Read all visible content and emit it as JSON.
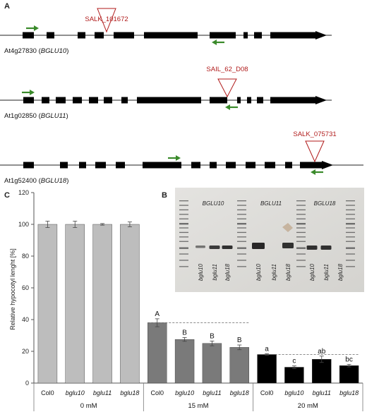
{
  "panel_a": {
    "letter": "A",
    "genes": [
      {
        "name_plain": "At4g27830 (",
        "name_italic": "BGLU10",
        "name_close": ")",
        "insertion": "SALK_101672"
      },
      {
        "name_plain": "At1g02850 (",
        "name_italic": "BGLU11",
        "name_close": ")",
        "insertion": "SAIL_62_D08"
      },
      {
        "name_plain": "At1g52400 (",
        "name_italic": "BGLU18",
        "name_close": ")",
        "insertion": "SALK_075731"
      }
    ],
    "colors": {
      "exon": "#000000",
      "insertion": "#b01a1a",
      "primer": "#3a8a2a"
    }
  },
  "panel_b": {
    "letter": "B",
    "gel_groups": [
      "BGLU10",
      "BGLU11",
      "BGLU18"
    ],
    "lanes": [
      "bglu10",
      "bglu11",
      "bglu18",
      "bglu10",
      "bglu11",
      "bglu18",
      "bglu10",
      "bglu11",
      "bglu18"
    ]
  },
  "panel_c": {
    "letter": "C"
  },
  "chart_data": {
    "type": "bar",
    "ylabel": "Relative hypocotyl lenght [%]",
    "ylim": [
      0,
      120
    ],
    "yticks": [
      "0",
      "20",
      "40",
      "60",
      "80",
      "100",
      "120"
    ],
    "categories": [
      "Col0",
      "bglu10",
      "bglu11",
      "bglu18",
      "Col0",
      "bglu10",
      "bglu11",
      "bglu18",
      "Col0",
      "bglu10",
      "bglu11",
      "bglu18"
    ],
    "values": [
      100,
      100,
      100,
      100,
      38,
      27.5,
      25,
      22.5,
      18,
      10,
      15,
      11
    ],
    "errors": [
      2,
      2,
      0.5,
      1.5,
      2.5,
      1.2,
      1.5,
      1.5,
      0.5,
      0.8,
      2,
      0.8
    ],
    "significance": [
      "",
      "",
      "",
      "",
      "A",
      "B",
      "B",
      "B",
      "a",
      "c",
      "ab",
      "bc"
    ],
    "groups": [
      {
        "label": "0 mM",
        "color": "#bdbdbd"
      },
      {
        "label": "15 mM",
        "color": "#7a7a7a"
      },
      {
        "label": "20 mM",
        "color": "#000000"
      }
    ],
    "reference_lines": [
      38,
      18
    ]
  }
}
